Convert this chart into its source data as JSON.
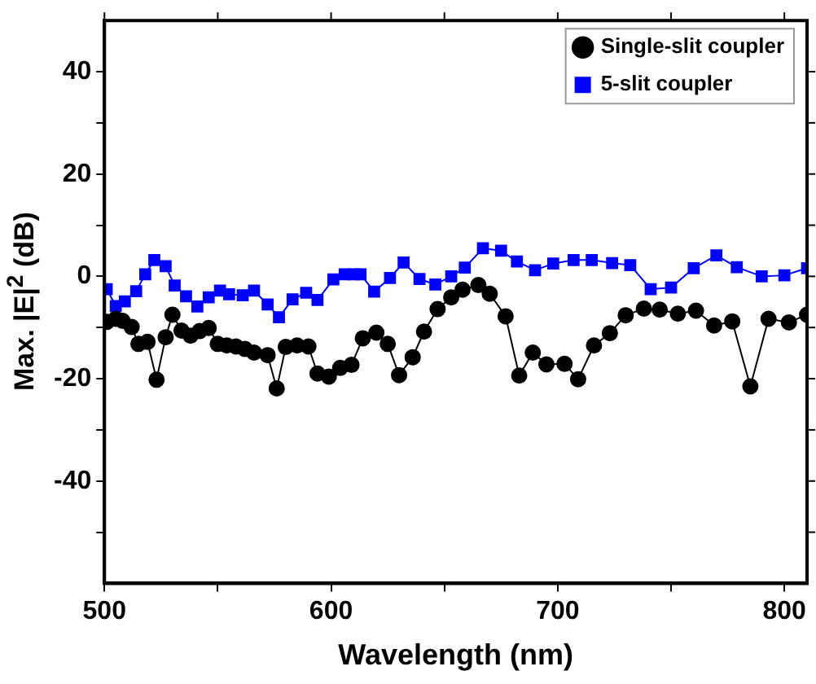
{
  "chart_data": {
    "type": "line",
    "xlabel": "Wavelength (nm)",
    "ylabel": "Max. |E|$^{2}$ (dB)",
    "xlim": [
      500,
      810
    ],
    "ylim": [
      -60,
      50
    ],
    "xticks": [
      500,
      {
        "value": 550,
        "label": null
      },
      600,
      {
        "value": 650,
        "label": null
      },
      700,
      {
        "value": 750,
        "label": null
      },
      800
    ],
    "yticks": [
      {
        "value": -50,
        "label": null
      },
      -40,
      {
        "value": -30,
        "label": null
      },
      -20,
      {
        "value": -10,
        "label": null
      },
      0,
      {
        "value": 10,
        "label": null
      },
      20,
      {
        "value": 30,
        "label": null
      },
      40
    ],
    "legend": "top right",
    "grid": false,
    "series": [
      {
        "name": "Single-slit coupler",
        "color": "#000000",
        "marker": "circle",
        "x": [
          501,
          505,
          508,
          512,
          515,
          519,
          523,
          527,
          530,
          534,
          538,
          542,
          546,
          550,
          554,
          558,
          562,
          566,
          572,
          576,
          580,
          585,
          590,
          594,
          599,
          604,
          609,
          614,
          620,
          625,
          630,
          636,
          641,
          647,
          653,
          658,
          665,
          670,
          677,
          683,
          689,
          695,
          703,
          709,
          716,
          723,
          730,
          738,
          745,
          753,
          761,
          769,
          777,
          785,
          793,
          802,
          810
        ],
        "values": [
          -8.9,
          -8.3,
          -8.7,
          -9.9,
          -13.2,
          -12.8,
          -20.2,
          -11.9,
          -7.5,
          -10.6,
          -11.6,
          -10.7,
          -10.1,
          -13.2,
          -13.5,
          -13.7,
          -14.2,
          -14.9,
          -15.4,
          -21.9,
          -13.8,
          -13.5,
          -13.7,
          -19,
          -19.6,
          -17.9,
          -17.3,
          -12.1,
          -11,
          -13.2,
          -19.3,
          -15.8,
          -10.8,
          -6.4,
          -4.1,
          -2.6,
          -1.7,
          -3.4,
          -7.8,
          -19.4,
          -14.9,
          -17.2,
          -17.1,
          -20.1,
          -13.5,
          -11.1,
          -7.6,
          -6.3,
          -6.5,
          -7.3,
          -6.7,
          -9.6,
          -8.8,
          -21.5,
          -8.3,
          -9,
          -7.5
        ]
      },
      {
        "name": "5-slit coupler",
        "color": "#0000ff",
        "marker": "square",
        "x": [
          501,
          505,
          509,
          514,
          518,
          522,
          527,
          531,
          536,
          541,
          546,
          551,
          555,
          561,
          566,
          572,
          577,
          583,
          589,
          594,
          601,
          606,
          610,
          613,
          619,
          626,
          632,
          639,
          646,
          653,
          659,
          667,
          675,
          682,
          690,
          698,
          707,
          715,
          724,
          732,
          741,
          750,
          760,
          770,
          779,
          790,
          800,
          810
        ],
        "values": [
          -2.5,
          -5.8,
          -4.9,
          -2.9,
          0.4,
          3.2,
          2,
          -1.8,
          -3.9,
          -5.9,
          -4.1,
          -2.8,
          -3.5,
          -3.7,
          -2.8,
          -5.5,
          -8,
          -4.5,
          -3.2,
          -4.6,
          -0.6,
          0.4,
          0.4,
          0.4,
          -3,
          -0.3,
          2.7,
          -0.5,
          -1.6,
          0,
          1.7,
          5.5,
          5,
          2.9,
          1.2,
          2.5,
          3.2,
          3.2,
          2.6,
          2.2,
          -2.5,
          -2.2,
          1.6,
          4.1,
          1.8,
          0,
          0.2,
          1.6
        ]
      }
    ]
  }
}
